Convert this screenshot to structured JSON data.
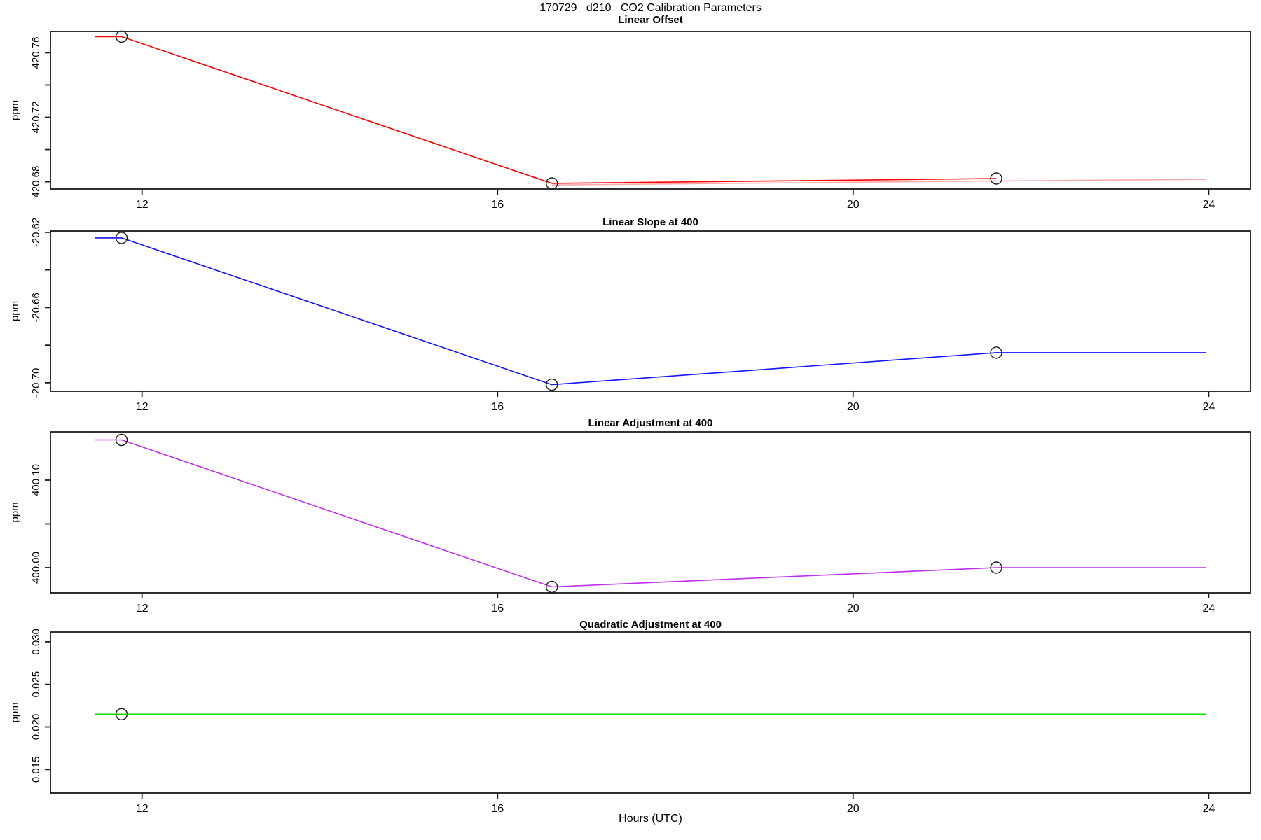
{
  "main_title": "170729   d210   CO2 Calibration Parameters",
  "x_axis": {
    "label": "Hours (UTC)",
    "lim": [
      10.97,
      24.47
    ],
    "ticks": [
      12,
      16,
      20,
      24
    ],
    "tick_labels": [
      "12",
      "16",
      "20",
      "24"
    ]
  },
  "chart_data": [
    {
      "type": "line",
      "title": "Linear Offset",
      "ylabel": "ppm",
      "ylim": [
        420.6755,
        420.7732
      ],
      "yticks": [
        {
          "v": 420.68,
          "label": "420.68"
        },
        {
          "v": 420.7,
          "label": ""
        },
        {
          "v": 420.72,
          "label": "420.72"
        },
        {
          "v": 420.74,
          "label": ""
        },
        {
          "v": 420.76,
          "label": "420.76"
        }
      ],
      "series": [
        {
          "name": "linear-offset-extension",
          "color": "#ffaaaa",
          "points": [
            [
              16.61,
              420.678
            ],
            [
              21.61,
              420.6805
            ],
            [
              23.97,
              420.6815
            ]
          ]
        },
        {
          "name": "linear-offset",
          "color": "#ff0000",
          "points": [
            [
              11.47,
              420.77
            ],
            [
              11.77,
              420.77
            ],
            [
              16.61,
              420.679
            ],
            [
              21.61,
              420.682
            ]
          ]
        }
      ],
      "markers": [
        [
          11.77,
          420.77
        ],
        [
          16.61,
          420.679
        ],
        [
          21.61,
          420.682
        ]
      ]
    },
    {
      "type": "line",
      "title": "Linear Slope at 400",
      "ylabel": "ppm",
      "ylim": [
        -20.7045,
        -20.6193
      ],
      "yticks": [
        {
          "v": -20.7,
          "label": "-20.70"
        },
        {
          "v": -20.68,
          "label": ""
        },
        {
          "v": -20.66,
          "label": "-20.66"
        },
        {
          "v": -20.64,
          "label": ""
        },
        {
          "v": -20.62,
          "label": "-20.62"
        }
      ],
      "series": [
        {
          "name": "linear-slope",
          "color": "#1414ff",
          "points": [
            [
              11.47,
              -20.623
            ],
            [
              11.77,
              -20.623
            ],
            [
              16.61,
              -20.701
            ],
            [
              21.61,
              -20.684
            ],
            [
              23.97,
              -20.684
            ]
          ]
        }
      ],
      "markers": [
        [
          11.77,
          -20.623
        ],
        [
          16.61,
          -20.701
        ],
        [
          21.61,
          -20.684
        ]
      ]
    },
    {
      "type": "line",
      "title": "Linear Adjustment at 400",
      "ylabel": "ppm",
      "ylim": [
        399.9712,
        400.1552
      ],
      "yticks": [
        {
          "v": 400.0,
          "label": "400.00"
        },
        {
          "v": 400.05,
          "label": ""
        },
        {
          "v": 400.1,
          "label": "400.10"
        }
      ],
      "series": [
        {
          "name": "linear-adjustment",
          "color": "#bf2ef0",
          "points": [
            [
              11.47,
              400.146
            ],
            [
              11.77,
              400.146
            ],
            [
              16.61,
              399.978
            ],
            [
              21.61,
              400.0
            ],
            [
              23.97,
              400.0
            ]
          ]
        }
      ],
      "markers": [
        [
          11.77,
          400.146
        ],
        [
          16.61,
          399.978
        ],
        [
          21.61,
          400.0
        ]
      ]
    },
    {
      "type": "line",
      "title": "Quadratic Adjustment at 400",
      "ylabel": "ppm",
      "ylim": [
        0.01223,
        0.03114
      ],
      "yticks": [
        {
          "v": 0.015,
          "label": "0.015"
        },
        {
          "v": 0.02,
          "label": "0.020"
        },
        {
          "v": 0.025,
          "label": "0.025"
        },
        {
          "v": 0.03,
          "label": "0.030"
        }
      ],
      "series": [
        {
          "name": "quadratic-adjustment",
          "color": "#00e000",
          "points": [
            [
              11.47,
              0.0215
            ],
            [
              23.97,
              0.0215
            ]
          ]
        }
      ],
      "markers": [
        [
          11.77,
          0.0215
        ]
      ]
    }
  ]
}
